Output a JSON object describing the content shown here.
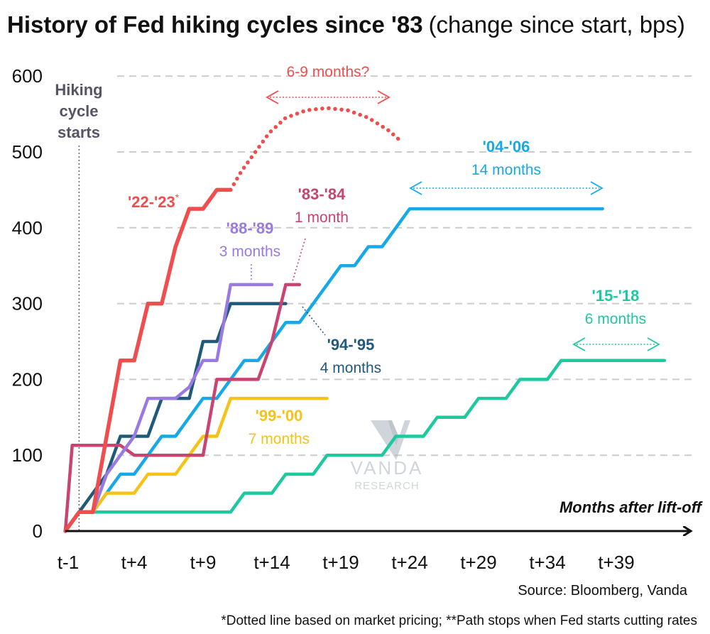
{
  "colors": {
    "c2223": "#f04e4e",
    "c8889": "#9a7ae0",
    "c8384": "#c9446f",
    "c9495": "#1f5a7a",
    "c9900": "#f6c21a",
    "c0406": "#17a8e8",
    "c1518": "#1ec9a0",
    "grid": "#cccccc",
    "axis": "#111111",
    "vline": "#666666",
    "watermark": "#aab4be"
  },
  "chart_data": {
    "type": "line",
    "title": "History of Fed hiking cycles since '83",
    "subtitle": "(change since start, bps)",
    "xlabel": "Months after lift-off",
    "ylabel": "",
    "ylim": [
      0,
      600
    ],
    "xlim": [
      -1,
      43.5
    ],
    "y_ticks": [
      {
        "value": 0,
        "label": "0"
      },
      {
        "value": 100,
        "label": "100"
      },
      {
        "value": 200,
        "label": "200"
      },
      {
        "value": 300,
        "label": "300"
      },
      {
        "value": 400,
        "label": "400"
      },
      {
        "value": 500,
        "label": "500"
      },
      {
        "value": 600,
        "label": "600"
      }
    ],
    "x_ticks": [
      {
        "value": -1,
        "label": "t-1"
      },
      {
        "value": 4,
        "label": "t+4"
      },
      {
        "value": 9,
        "label": "t+9"
      },
      {
        "value": 14,
        "label": "t+14"
      },
      {
        "value": 19,
        "label": "t+19"
      },
      {
        "value": 24,
        "label": "t+24"
      },
      {
        "value": 29,
        "label": "t+29"
      },
      {
        "value": 34,
        "label": "t+34"
      },
      {
        "value": 39,
        "label": "t+39"
      }
    ],
    "grid": "horizontal dashed",
    "start_marker": {
      "x": 0,
      "label_lines": [
        "Hiking",
        "cycle",
        "starts"
      ]
    },
    "series": [
      {
        "key": "s1518",
        "name": "'15-'18",
        "color_key": "c1518",
        "points": [
          [
            -1,
            0
          ],
          [
            0,
            25
          ],
          [
            11,
            25
          ],
          [
            12,
            50
          ],
          [
            14,
            50
          ],
          [
            15,
            75
          ],
          [
            17,
            75
          ],
          [
            18,
            100
          ],
          [
            22,
            100
          ],
          [
            23,
            125
          ],
          [
            25,
            125
          ],
          [
            26,
            150
          ],
          [
            28,
            150
          ],
          [
            29,
            175
          ],
          [
            31,
            175
          ],
          [
            32,
            200
          ],
          [
            34,
            200
          ],
          [
            35,
            225
          ],
          [
            42.5,
            225
          ]
        ],
        "label": "'15-'18",
        "sublabel": "6 months"
      },
      {
        "key": "s0406",
        "name": "'04-'06",
        "color_key": "c0406",
        "points": [
          [
            -1,
            0
          ],
          [
            0,
            25
          ],
          [
            1,
            25
          ],
          [
            2,
            50
          ],
          [
            3,
            75
          ],
          [
            4,
            75
          ],
          [
            5,
            100
          ],
          [
            6,
            125
          ],
          [
            7,
            125
          ],
          [
            8,
            150
          ],
          [
            9,
            175
          ],
          [
            10,
            175
          ],
          [
            11,
            200
          ],
          [
            12,
            225
          ],
          [
            13,
            225
          ],
          [
            14,
            250
          ],
          [
            15,
            275
          ],
          [
            16,
            275
          ],
          [
            17,
            300
          ],
          [
            18,
            325
          ],
          [
            19,
            350
          ],
          [
            20,
            350
          ],
          [
            21,
            375
          ],
          [
            22,
            375
          ],
          [
            23,
            400
          ],
          [
            24,
            425
          ],
          [
            38,
            425
          ]
        ],
        "label": "'04-'06",
        "sublabel": "14 months"
      },
      {
        "key": "s9900",
        "name": "'99-'00",
        "color_key": "c9900",
        "points": [
          [
            -1,
            0
          ],
          [
            0,
            25
          ],
          [
            1,
            25
          ],
          [
            2,
            50
          ],
          [
            4,
            50
          ],
          [
            5,
            75
          ],
          [
            7,
            75
          ],
          [
            8,
            100
          ],
          [
            9,
            125
          ],
          [
            10,
            125
          ],
          [
            11,
            175
          ],
          [
            18,
            175
          ]
        ],
        "label": "'99-'00",
        "sublabel": "7 months"
      },
      {
        "key": "s9495",
        "name": "'94-'95",
        "color_key": "c9495",
        "points": [
          [
            -1,
            0
          ],
          [
            0,
            25
          ],
          [
            2,
            75
          ],
          [
            3,
            125
          ],
          [
            5,
            125
          ],
          [
            6,
            175
          ],
          [
            8,
            175
          ],
          [
            9,
            250
          ],
          [
            10,
            250
          ],
          [
            11,
            300
          ],
          [
            15,
            300
          ]
        ],
        "label": "'94-'95",
        "sublabel": "4 months"
      },
      {
        "key": "s8384",
        "name": "'83-'84",
        "color_key": "c8384",
        "points": [
          [
            -1,
            0
          ],
          [
            -0.5,
            113
          ],
          [
            2,
            113
          ],
          [
            3,
            113
          ],
          [
            4,
            100
          ],
          [
            5,
            100
          ],
          [
            9,
            100
          ],
          [
            10,
            200
          ],
          [
            13,
            200
          ],
          [
            14,
            250
          ],
          [
            15,
            325
          ],
          [
            16,
            325
          ]
        ],
        "label": "'83-'84",
        "sublabel": "1 month"
      },
      {
        "key": "s8889",
        "name": "'88-'89",
        "color_key": "c8889",
        "points": [
          [
            -1,
            0
          ],
          [
            0,
            25
          ],
          [
            1,
            25
          ],
          [
            2,
            75
          ],
          [
            3,
            100
          ],
          [
            4,
            125
          ],
          [
            5,
            175
          ],
          [
            7,
            175
          ],
          [
            8,
            190
          ],
          [
            9,
            225
          ],
          [
            10,
            225
          ],
          [
            11,
            325
          ],
          [
            14,
            325
          ]
        ],
        "label": "'88-'89",
        "sublabel": "3 months"
      },
      {
        "key": "s2223",
        "name": "'22-'23",
        "color_key": "c2223",
        "points": [
          [
            -1,
            0
          ],
          [
            0,
            25
          ],
          [
            1,
            25
          ],
          [
            3,
            225
          ],
          [
            4,
            225
          ],
          [
            5,
            300
          ],
          [
            6,
            300
          ],
          [
            7,
            375
          ],
          [
            8,
            425
          ],
          [
            9,
            425
          ],
          [
            10,
            450
          ],
          [
            11,
            450
          ]
        ],
        "dotted_points": [
          [
            11,
            450
          ],
          [
            11.8,
            475
          ],
          [
            12.8,
            500
          ],
          [
            13.8,
            525
          ],
          [
            15,
            545
          ],
          [
            16.5,
            555
          ],
          [
            18,
            558
          ],
          [
            19.5,
            555
          ],
          [
            21,
            545
          ],
          [
            22.5,
            528
          ],
          [
            23.5,
            512
          ]
        ],
        "label": "'22-'23",
        "label_sup": "*"
      }
    ],
    "annotations": {
      "forecast_text": "6-9 months?",
      "forecast_range": [
        14.5,
        23
      ]
    }
  },
  "footer": {
    "source": "Source: Bloomberg, Vanda",
    "note": "*Dotted line based on market pricing; **Path stops when Fed starts cutting rates"
  },
  "watermark": {
    "brand": "VANDA",
    "sub": "RESEARCH"
  }
}
